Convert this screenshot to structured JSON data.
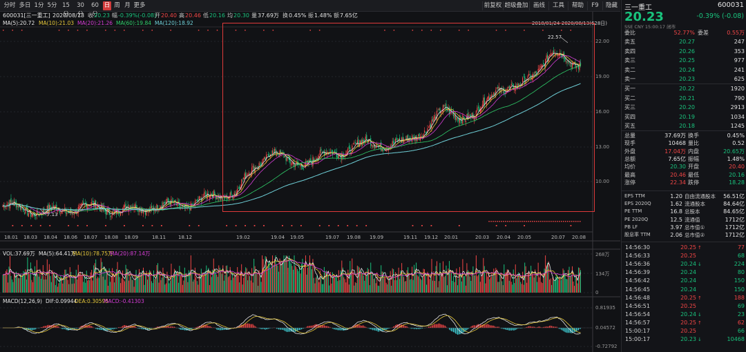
{
  "toolbar": {
    "periods": [
      "分时",
      "多日",
      "1分",
      "5分",
      "15分",
      "30分",
      "60分",
      "日",
      "周",
      "月",
      "更多"
    ],
    "active_period": "日",
    "right_buttons": [
      "前复权",
      "超级叠加",
      "画线",
      "工具",
      "帮助",
      "F9",
      "隐藏"
    ]
  },
  "stock": {
    "code_name": "600031[三一重工]",
    "date": "2020/08/13",
    "close_label": "收",
    "close": "20.23",
    "change_label": "幅",
    "change": "-0.39%(-0.08)",
    "open_label": "开",
    "open": "20.40",
    "high_label": "高",
    "high": "20.46",
    "low_label": "低",
    "low": "20.16",
    "avg_label": "均",
    "avg": "20.30",
    "vol_label": "量",
    "volume": "37.69万",
    "turnover_label": "换",
    "turnover": "0.45%",
    "amp_label": "振",
    "amplitude": "1.48%",
    "amount_label": "额",
    "amount": "7.65亿"
  },
  "ma": {
    "ma5": "MA(5):20.72",
    "ma10": "MA(10):21.03",
    "ma20": "MA(20):21.26",
    "ma60": "MA(60):19.84",
    "ma120": "MA(120):18.92"
  },
  "vol_info": {
    "vol": "VOL:37.69万",
    "ma5": "MA(5):64.41万",
    "ma10": "MA(10):78.75万",
    "ma20": "MA(20):87.14万"
  },
  "macd_info": {
    "name": "MACD(12,26,9)",
    "dif": "DIF:0.09944",
    "dea": "DEA:0.30595",
    "macd": "MACD:-0.41303"
  },
  "chart": {
    "y_ticks": [
      "22.00",
      "19.00",
      "16.00",
      "13.00",
      "10.00"
    ],
    "range_label": "2018/01/24-2020/08/13(628日)",
    "peak_label": "22.57",
    "low_label": "7.13",
    "months": [
      "18.01",
      "18.03",
      "18.04",
      "18.06",
      "18.07",
      "18.08",
      "18.09",
      "18.11",
      "18.12",
      "19.02",
      "19.04",
      "19.05",
      "19.07",
      "19.08",
      "19.09",
      "19.11",
      "19.12",
      "20.01",
      "20.03",
      "20.04",
      "20.05",
      "20.07",
      "20.08"
    ],
    "vol_ticks": [
      "268万",
      "134万",
      "0"
    ],
    "macd_ticks": [
      "0.81935",
      "0.04572",
      "-0.72792"
    ]
  },
  "chart_data": {
    "type": "candlestick",
    "title": "600031[三一重工]",
    "x_range": [
      "2018/01/24",
      "2020/08/13"
    ],
    "ylim": [
      7.13,
      22.57
    ],
    "y_ticks": [
      10,
      13,
      16,
      19,
      22
    ],
    "close_path": [
      [
        "18.01",
        7.9
      ],
      [
        "18.03",
        7.7
      ],
      [
        "18.04",
        7.3
      ],
      [
        "18.06",
        7.6
      ],
      [
        "18.07",
        7.8
      ],
      [
        "18.08",
        7.7
      ],
      [
        "18.09",
        7.5
      ],
      [
        "18.11",
        7.9
      ],
      [
        "18.12",
        7.9
      ],
      [
        "19.02",
        9.2
      ],
      [
        "19.04",
        12.8
      ],
      [
        "19.05",
        11.4
      ],
      [
        "19.07",
        12.2
      ],
      [
        "19.08",
        12.8
      ],
      [
        "19.09",
        13.3
      ],
      [
        "19.11",
        13.2
      ],
      [
        "19.12",
        14.5
      ],
      [
        "20.01",
        16.0
      ],
      [
        "20.03",
        15.5
      ],
      [
        "20.04",
        18.2
      ],
      [
        "20.05",
        17.8
      ],
      [
        "20.07",
        21.0
      ],
      [
        "20.08",
        20.23
      ]
    ],
    "peak": 22.57,
    "low": 7.13
  },
  "quote": {
    "name": "三一重工",
    "code": "600031",
    "price": "20.23",
    "change": "-0.39% (-0.08)",
    "sub": "SSE CNY 15:00:17 闭市",
    "wei_bi_label": "委比",
    "wei_bi": "52.77%",
    "wei_cha_label": "委差",
    "wei_cha": "0.55万",
    "sell": [
      {
        "label": "卖五",
        "price": "20.27",
        "vol": "247"
      },
      {
        "label": "卖四",
        "price": "20.26",
        "vol": "353"
      },
      {
        "label": "卖三",
        "price": "20.25",
        "vol": "977"
      },
      {
        "label": "卖二",
        "price": "20.24",
        "vol": "241"
      },
      {
        "label": "卖一",
        "price": "20.23",
        "vol": "625"
      }
    ],
    "buy": [
      {
        "label": "买一",
        "price": "20.22",
        "vol": "1920"
      },
      {
        "label": "买二",
        "price": "20.21",
        "vol": "790"
      },
      {
        "label": "买三",
        "price": "20.20",
        "vol": "2913"
      },
      {
        "label": "买四",
        "price": "20.19",
        "vol": "1034"
      },
      {
        "label": "买五",
        "price": "20.18",
        "vol": "1245"
      }
    ],
    "stats": [
      {
        "l1": "总量",
        "v1": "37.69万",
        "l2": "换手",
        "v2": "0.45%",
        "c1": "white",
        "c2": "white"
      },
      {
        "l1": "现手",
        "v1": "10468",
        "l2": "量比",
        "v2": "0.52",
        "c1": "white",
        "c2": "white"
      },
      {
        "l1": "外盘",
        "v1": "17.04万",
        "l2": "内盘",
        "v2": "20.65万",
        "c1": "red",
        "c2": "green"
      },
      {
        "l1": "总额",
        "v1": "7.65亿",
        "l2": "振幅",
        "v2": "1.48%",
        "c1": "white",
        "c2": "white"
      },
      {
        "l1": "均价",
        "v1": "20.30",
        "l2": "开盘",
        "v2": "20.40",
        "c1": "green",
        "c2": "red"
      },
      {
        "l1": "最高",
        "v1": "20.46",
        "l2": "最低",
        "v2": "20.16",
        "c1": "red",
        "c2": "green"
      },
      {
        "l1": "涨停",
        "v1": "22.34",
        "l2": "跌停",
        "v2": "18.28",
        "c1": "red",
        "c2": "green"
      }
    ],
    "fin": [
      {
        "l1": "EPS TTM",
        "v1": "1.20",
        "l2": "自由流通股本",
        "v2": "56.51亿"
      },
      {
        "l1": "EPS 2020Q",
        "v1": "1.62",
        "l2": "流通股本",
        "v2": "84.64亿"
      },
      {
        "l1": "PE TTM",
        "v1": "16.8",
        "l2": "总股本",
        "v2": "84.65亿"
      },
      {
        "l1": "PE 2020Q",
        "v1": "12.5",
        "l2": "流通值",
        "v2": "1712亿"
      },
      {
        "l1": "PB LF",
        "v1": "3.97",
        "l2": "总市值①",
        "v2": "1712亿"
      },
      {
        "l1": "股息率 TTM",
        "v1": "2.06",
        "l2": "总市值②",
        "v2": "1712亿"
      }
    ],
    "ticks": [
      {
        "t": "14:56:30",
        "p": "20.25",
        "d": "up",
        "v": "77"
      },
      {
        "t": "14:56:33",
        "p": "20.25",
        "d": "flat",
        "v": "68"
      },
      {
        "t": "14:56:36",
        "p": "20.24",
        "d": "down",
        "v": "224"
      },
      {
        "t": "14:56:39",
        "p": "20.24",
        "d": "flat",
        "v": "80"
      },
      {
        "t": "14:56:42",
        "p": "20.24",
        "d": "flat",
        "v": "150"
      },
      {
        "t": "14:56:45",
        "p": "20.24",
        "d": "flat",
        "v": "150"
      },
      {
        "t": "14:56:48",
        "p": "20.25",
        "d": "up",
        "v": "188"
      },
      {
        "t": "14:56:51",
        "p": "20.25",
        "d": "flat",
        "v": "69"
      },
      {
        "t": "14:56:54",
        "p": "20.24",
        "d": "down",
        "v": "23"
      },
      {
        "t": "14:56:57",
        "p": "20.25",
        "d": "up",
        "v": "62"
      },
      {
        "t": "15:00:17",
        "p": "20.25",
        "d": "flat",
        "v": "66"
      },
      {
        "t": "15:00:17",
        "p": "20.23",
        "d": "down",
        "v": "10468"
      }
    ]
  },
  "colors": {
    "up": "#f24646",
    "down": "#19c37d",
    "ma5": "#e6e6e6",
    "ma10": "#e6c83a",
    "ma20": "#d63cd6",
    "ma60": "#2fcf6a",
    "ma120": "#6fd0d8",
    "box": "#e03a3a"
  }
}
